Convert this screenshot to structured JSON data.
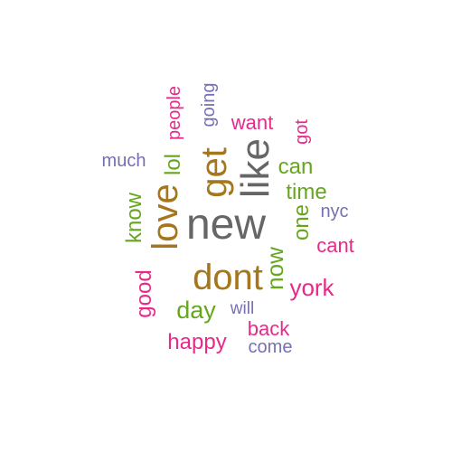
{
  "words": [
    {
      "text": "new",
      "color": "#666666"
    },
    {
      "text": "like",
      "color": "#666666"
    },
    {
      "text": "get",
      "color": "#A6761D"
    },
    {
      "text": "love",
      "color": "#A6761D"
    },
    {
      "text": "dont",
      "color": "#A6761D"
    },
    {
      "text": "now",
      "color": "#66A61E"
    },
    {
      "text": "know",
      "color": "#66A61E"
    },
    {
      "text": "one",
      "color": "#66A61E"
    },
    {
      "text": "time",
      "color": "#66A61E"
    },
    {
      "text": "can",
      "color": "#66A61E"
    },
    {
      "text": "day",
      "color": "#66A61E"
    },
    {
      "text": "lol",
      "color": "#66A61E"
    },
    {
      "text": "york",
      "color": "#E7298A"
    },
    {
      "text": "happy",
      "color": "#E7298A"
    },
    {
      "text": "good",
      "color": "#E7298A"
    },
    {
      "text": "want",
      "color": "#E7298A"
    },
    {
      "text": "cant",
      "color": "#E7298A"
    },
    {
      "text": "back",
      "color": "#E7298A"
    },
    {
      "text": "people",
      "color": "#E7298A"
    },
    {
      "text": "got",
      "color": "#E7298A"
    },
    {
      "text": "going",
      "color": "#7570B3"
    },
    {
      "text": "much",
      "color": "#7570B3"
    },
    {
      "text": "nyc",
      "color": "#7570B3"
    },
    {
      "text": "will",
      "color": "#7570B3"
    },
    {
      "text": "come",
      "color": "#7570B3"
    }
  ]
}
